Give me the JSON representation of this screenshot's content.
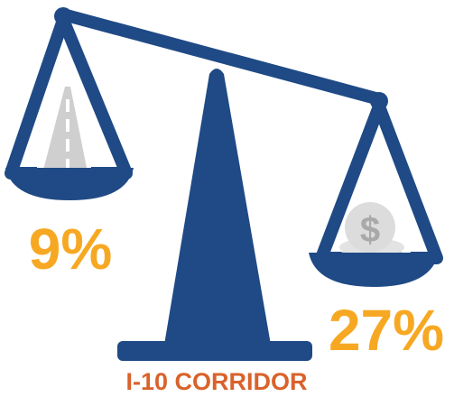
{
  "left_pan": {
    "label": "9%"
  },
  "right_pan": {
    "label": "27%",
    "icon_symbol": "$"
  },
  "caption": "I-10 CORRIDOR"
}
